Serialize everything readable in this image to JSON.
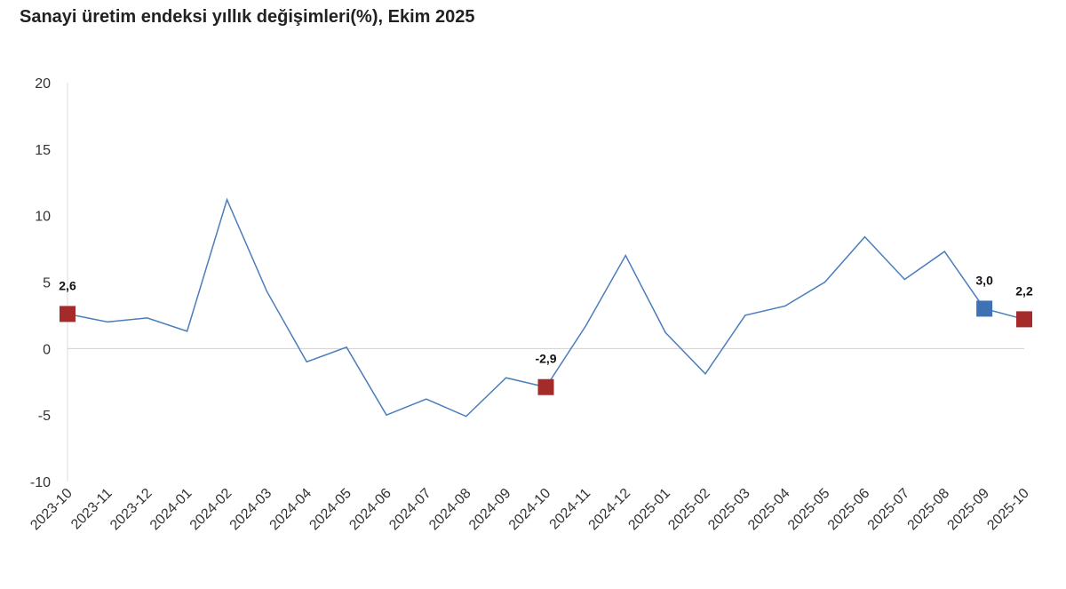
{
  "chart_data": {
    "type": "line",
    "title": "Sanayi üretim endeksi yıllık değişimleri(%), Ekim 2025",
    "xlabel": "",
    "ylabel": "",
    "ylim": [
      -10,
      20
    ],
    "yticks": [
      -10,
      -5,
      0,
      5,
      10,
      15,
      20
    ],
    "grid": false,
    "categories": [
      "2023-10",
      "2023-11",
      "2023-12",
      "2024-01",
      "2024-02",
      "2024-03",
      "2024-04",
      "2024-05",
      "2024-06",
      "2024-07",
      "2024-08",
      "2024-09",
      "2024-10",
      "2024-11",
      "2024-12",
      "2025-01",
      "2025-02",
      "2025-03",
      "2025-04",
      "2025-05",
      "2025-06",
      "2025-07",
      "2025-08",
      "2025-09",
      "2025-10"
    ],
    "series": [
      {
        "values": [
          2.6,
          2.0,
          2.3,
          1.3,
          11.2,
          4.3,
          -1.0,
          0.1,
          -5.0,
          -3.8,
          -5.1,
          -2.2,
          -2.9,
          1.7,
          7.0,
          1.2,
          -1.9,
          2.5,
          3.2,
          5.0,
          8.4,
          5.2,
          7.3,
          3.0,
          2.2
        ],
        "color": "#4a7ebb"
      }
    ],
    "highlighted_points": [
      {
        "category": "2023-10",
        "label": "2,6",
        "color": "#a52a2a"
      },
      {
        "category": "2024-10",
        "label": "-2,9",
        "color": "#a52a2a"
      },
      {
        "category": "2025-09",
        "label": "3,0",
        "color": "#3f72b5"
      },
      {
        "category": "2025-10",
        "label": "2,2",
        "color": "#a52a2a"
      }
    ]
  }
}
